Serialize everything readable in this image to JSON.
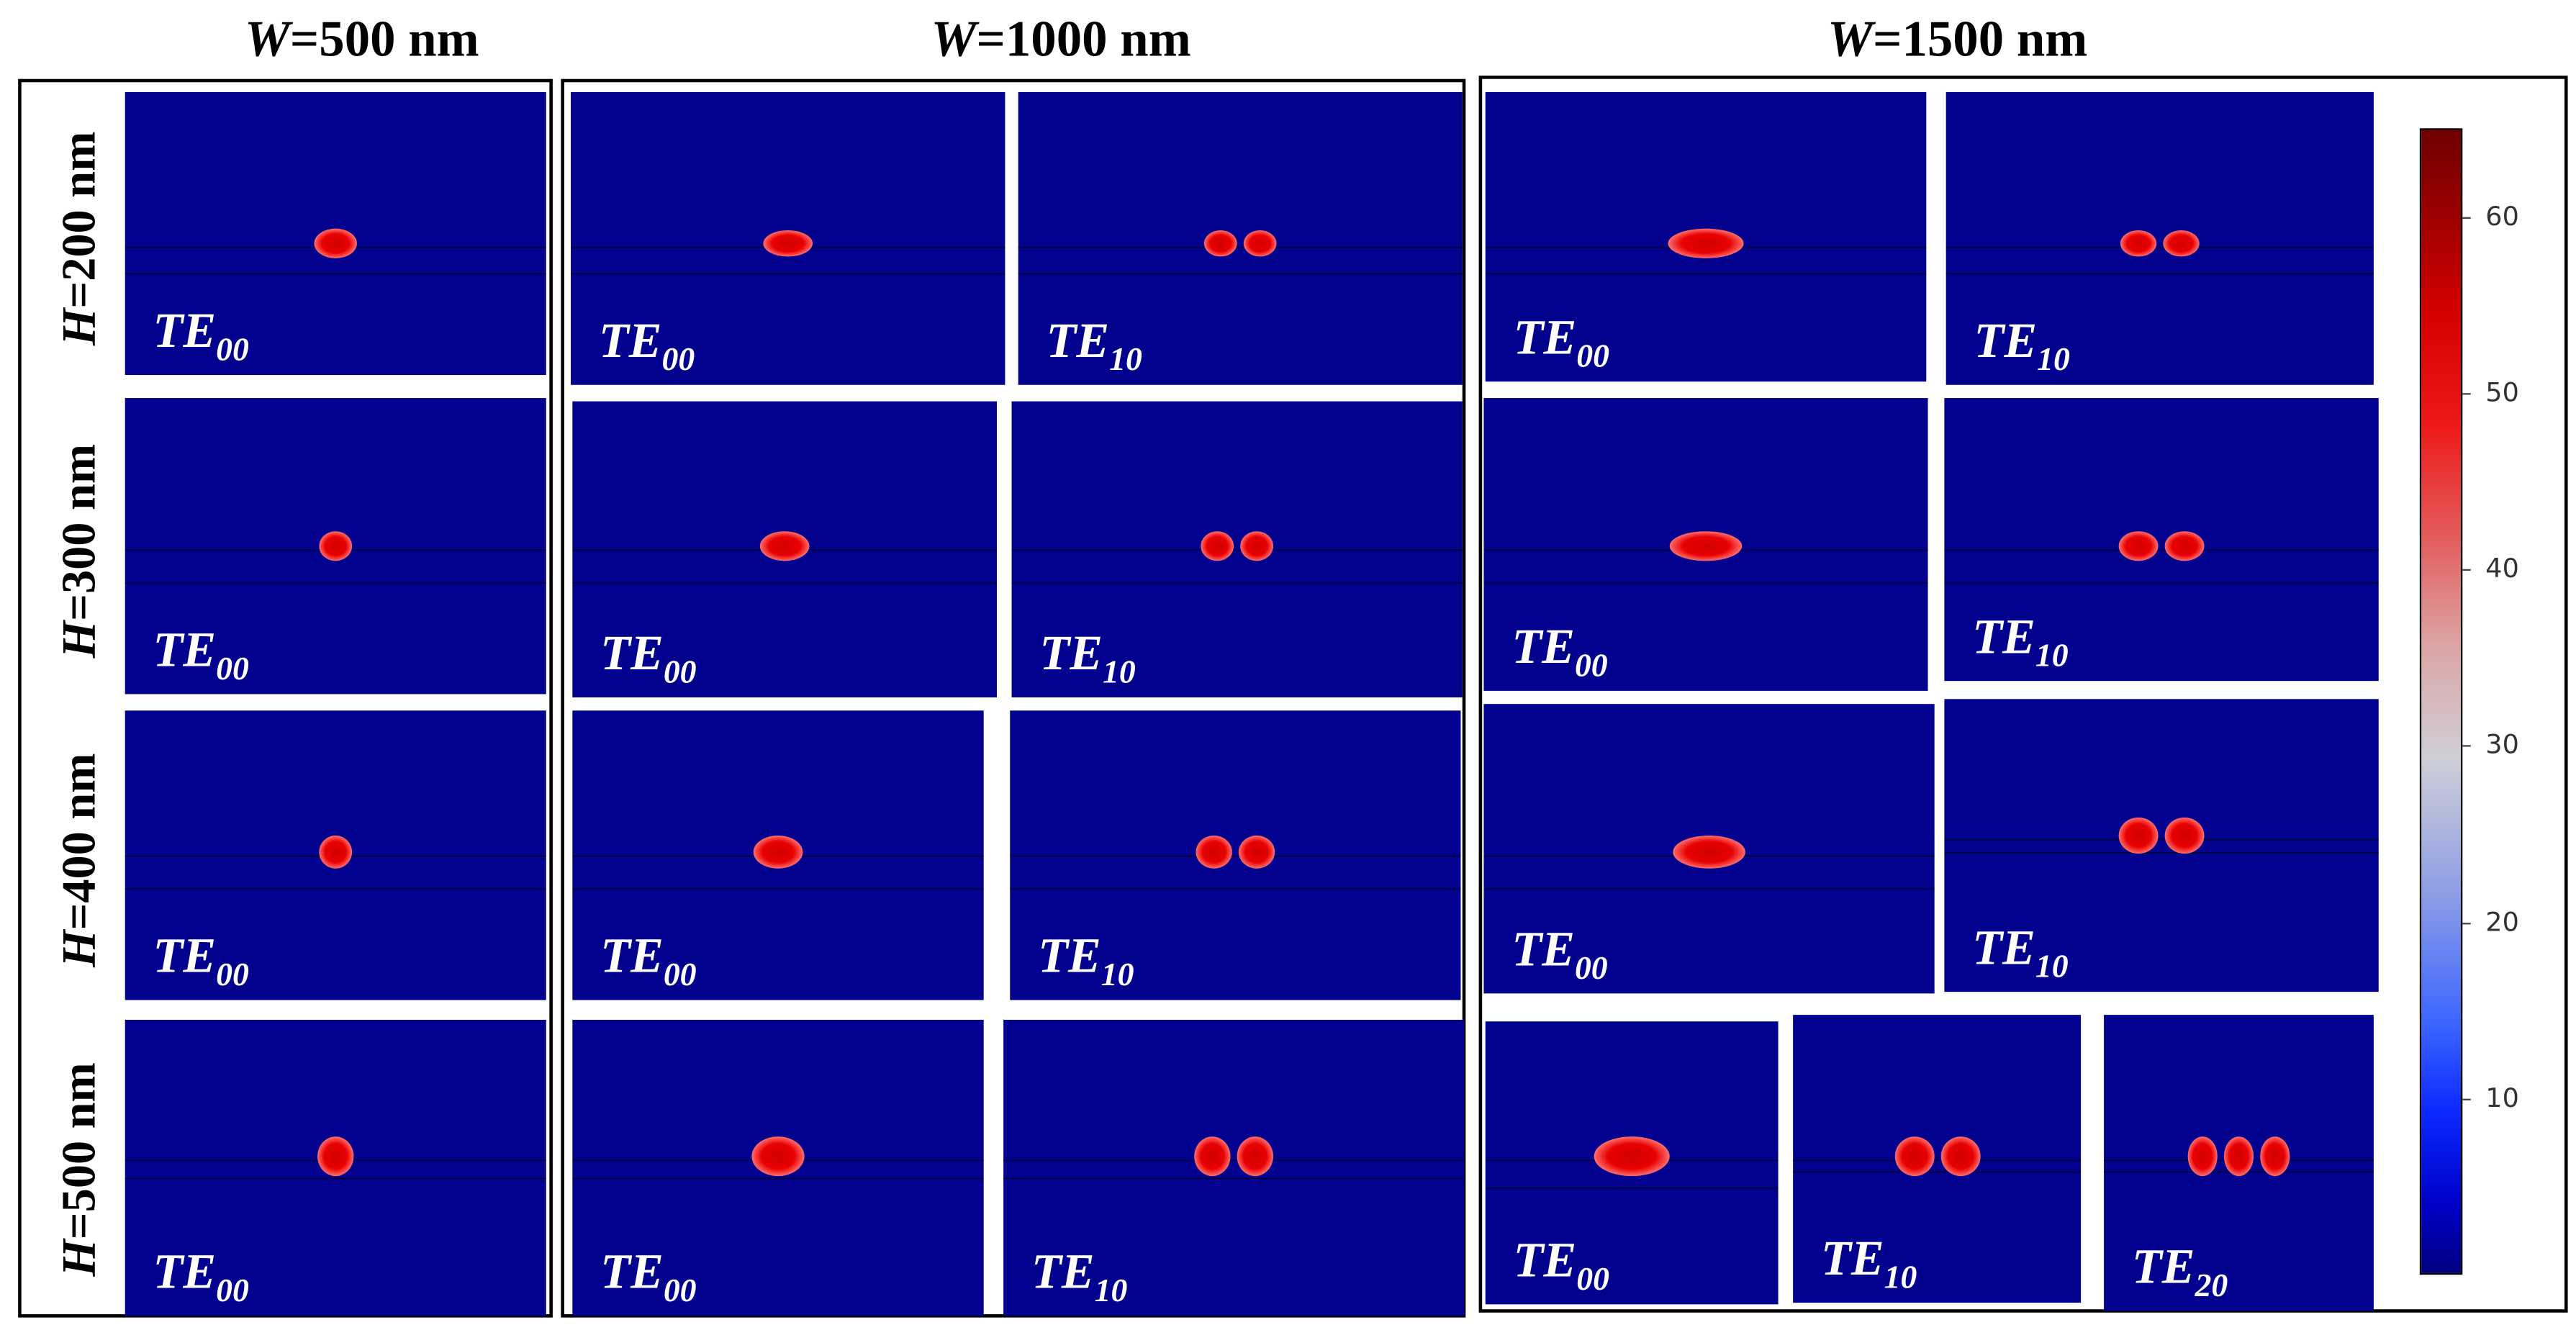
{
  "column_headers": [
    {
      "var": "W",
      "value": "=500 nm"
    },
    {
      "var": "W",
      "value": "=1000 nm"
    },
    {
      "var": "W",
      "value": "=1500 nm"
    }
  ],
  "row_headers": [
    {
      "var": "H",
      "value": "=200 nm"
    },
    {
      "var": "H",
      "value": "=300 nm"
    },
    {
      "var": "H",
      "value": "=400 nm"
    },
    {
      "var": "H",
      "value": "=500 nm"
    }
  ],
  "panels": [
    {
      "mode": "TE",
      "sub": "00",
      "lobes": 1,
      "row": 0,
      "col": 0
    },
    {
      "mode": "TE",
      "sub": "00",
      "lobes": 1,
      "row": 0,
      "col": 1
    },
    {
      "mode": "TE",
      "sub": "10",
      "lobes": 2,
      "row": 0,
      "col": 1
    },
    {
      "mode": "TE",
      "sub": "00",
      "lobes": 1,
      "row": 0,
      "col": 2
    },
    {
      "mode": "TE",
      "sub": "10",
      "lobes": 2,
      "row": 0,
      "col": 2
    },
    {
      "mode": "TE",
      "sub": "00",
      "lobes": 1,
      "row": 1,
      "col": 0
    },
    {
      "mode": "TE",
      "sub": "00",
      "lobes": 1,
      "row": 1,
      "col": 1
    },
    {
      "mode": "TE",
      "sub": "10",
      "lobes": 2,
      "row": 1,
      "col": 1
    },
    {
      "mode": "TE",
      "sub": "00",
      "lobes": 1,
      "row": 1,
      "col": 2
    },
    {
      "mode": "TE",
      "sub": "10",
      "lobes": 2,
      "row": 1,
      "col": 2
    },
    {
      "mode": "TE",
      "sub": "00",
      "lobes": 1,
      "row": 2,
      "col": 0
    },
    {
      "mode": "TE",
      "sub": "00",
      "lobes": 1,
      "row": 2,
      "col": 1
    },
    {
      "mode": "TE",
      "sub": "10",
      "lobes": 2,
      "row": 2,
      "col": 1
    },
    {
      "mode": "TE",
      "sub": "00",
      "lobes": 1,
      "row": 2,
      "col": 2
    },
    {
      "mode": "TE",
      "sub": "10",
      "lobes": 2,
      "row": 2,
      "col": 2
    },
    {
      "mode": "TE",
      "sub": "00",
      "lobes": 1,
      "row": 3,
      "col": 0
    },
    {
      "mode": "TE",
      "sub": "00",
      "lobes": 1,
      "row": 3,
      "col": 1
    },
    {
      "mode": "TE",
      "sub": "10",
      "lobes": 2,
      "row": 3,
      "col": 1
    },
    {
      "mode": "TE",
      "sub": "00",
      "lobes": 1,
      "row": 3,
      "col": 2
    },
    {
      "mode": "TE",
      "sub": "10",
      "lobes": 2,
      "row": 3,
      "col": 2
    },
    {
      "mode": "TE",
      "sub": "20",
      "lobes": 3,
      "row": 3,
      "col": 2
    }
  ],
  "colorbar": {
    "ticks": [
      "10",
      "20",
      "30",
      "40",
      "50",
      "60"
    ],
    "range": [
      0,
      65
    ],
    "colors": {
      "low": "#000080",
      "mid": "#cfcfd6",
      "high": "#6e0000"
    }
  },
  "colors": {
    "panel_background": "#02028f",
    "mode_label": "#ffffff",
    "lobe_core": "#d10000"
  }
}
